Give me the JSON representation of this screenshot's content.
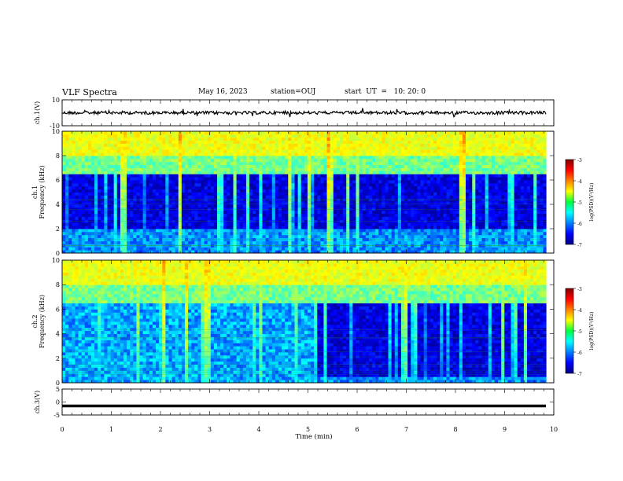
{
  "header": {
    "title": "VLF Spectra",
    "date": "May 16, 2023",
    "station": "station=OUJ",
    "start": "start  UT  =   10: 20: 0"
  },
  "chart_data": [
    {
      "type": "line",
      "name": "ch1-waveform",
      "ylabel": "ch.1(V)",
      "ylim": [
        -10,
        10
      ],
      "yticklabels": [
        "10",
        "-10"
      ],
      "baseline_v": 0,
      "xlim": [
        0,
        10
      ]
    },
    {
      "type": "heatmap",
      "name": "ch1-spectrogram",
      "ylabel": "ch.1\nFrequency (kHz)",
      "ylim": [
        0,
        10
      ],
      "yticklabels": [
        "0",
        "2",
        "4",
        "6",
        "8",
        "10"
      ],
      "xlim": [
        0,
        9.85
      ],
      "colorbar": {
        "label": "log(PSD)(V²/Hz)",
        "range": [
          -7,
          -3
        ],
        "ticklabels": [
          "-3",
          "-4",
          "-5",
          "-6",
          "-7"
        ],
        "colormap": "jet"
      },
      "quiet_band_khz": [
        2,
        6.5
      ],
      "gap_minutes": [
        [
          2.5,
          5.4
        ]
      ]
    },
    {
      "type": "heatmap",
      "name": "ch2-spectrogram",
      "ylabel": "ch.2\nFrequency (kHz)",
      "ylim": [
        0,
        10
      ],
      "yticklabels": [
        "0",
        "2",
        "4",
        "6",
        "8",
        "10"
      ],
      "xlim": [
        0,
        9.85
      ],
      "colorbar": {
        "label": "log(PSD)(V²/Hz)",
        "range": [
          -7,
          -3
        ],
        "ticklabels": [
          "-3",
          "-4",
          "-5",
          "-6",
          "-7"
        ],
        "colormap": "jet"
      },
      "quiet_band_khz": [
        0.5,
        6.5
      ],
      "quiet_after_min": 5.2
    },
    {
      "type": "line",
      "name": "ch3-waveform",
      "ylabel": "ch.3(V)",
      "ylim": [
        -5,
        5
      ],
      "yticklabels": [
        "5",
        "0",
        "-5"
      ],
      "baseline_v": -1.5,
      "xlim": [
        0,
        10
      ]
    }
  ],
  "xaxis": {
    "label": "Time (min)",
    "range": [
      0,
      10
    ],
    "ticklabels": [
      "0",
      "1",
      "2",
      "3",
      "4",
      "5",
      "6",
      "7",
      "8",
      "9",
      "10"
    ]
  }
}
